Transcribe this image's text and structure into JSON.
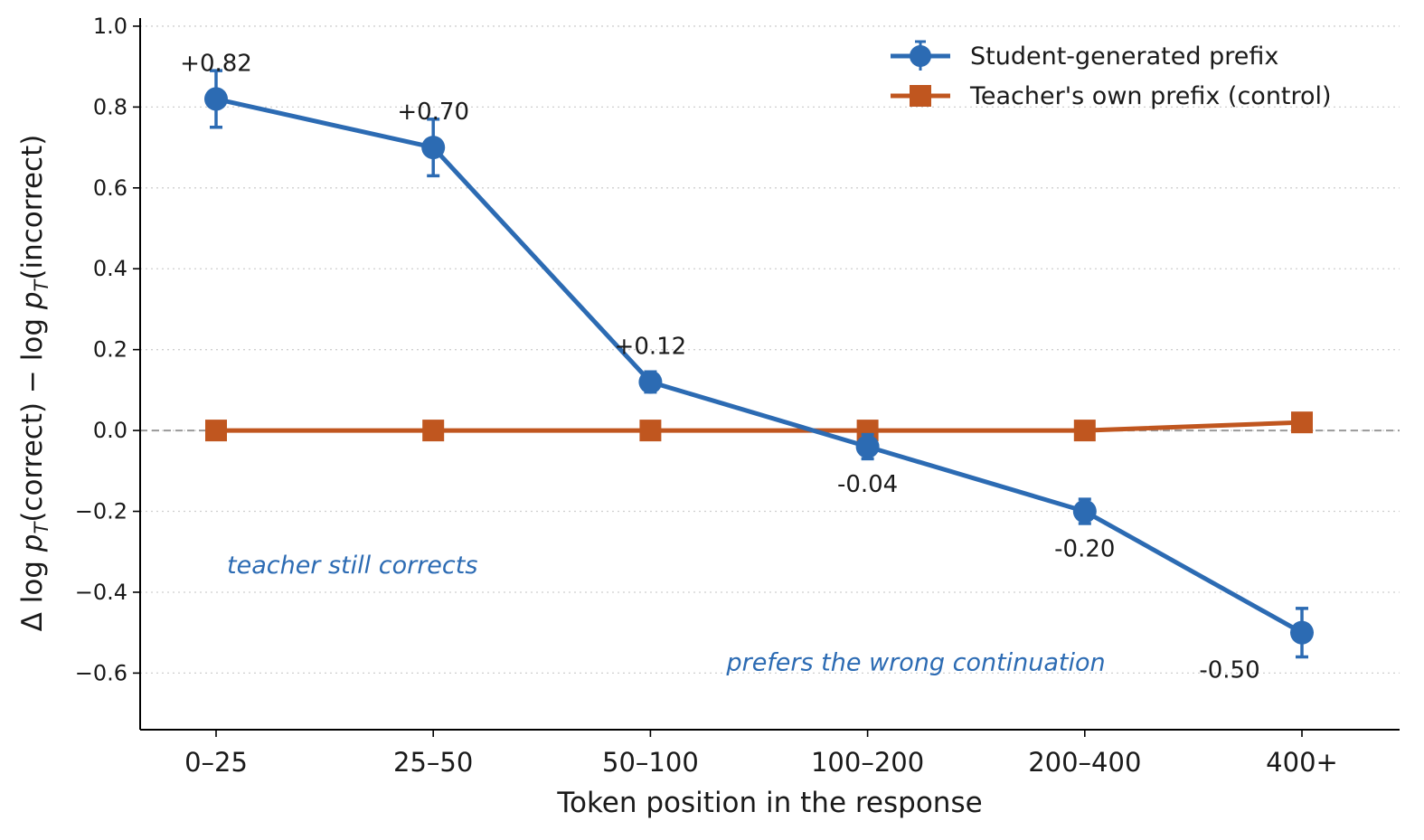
{
  "chart_data": {
    "type": "line",
    "xlabel": "Token position in the response",
    "ylabel_parts": [
      "Δ  log ",
      "p",
      "T",
      "(correct) − log ",
      "p",
      "T",
      "(incorrect)"
    ],
    "categories": [
      "0–25",
      "25–50",
      "50–100",
      "100–200",
      "200–400",
      "400+"
    ],
    "ylim": [
      -0.74,
      1.02
    ],
    "yticks": [
      {
        "value": 1.0,
        "label": "1.0"
      },
      {
        "value": 0.8,
        "label": "0.8"
      },
      {
        "value": 0.6,
        "label": "0.6"
      },
      {
        "value": 0.4,
        "label": "0.4"
      },
      {
        "value": 0.2,
        "label": "0.2"
      },
      {
        "value": 0.0,
        "label": "0.0"
      },
      {
        "value": -0.2,
        "label": "−0.2"
      },
      {
        "value": -0.4,
        "label": "−0.4"
      },
      {
        "value": -0.6,
        "label": "−0.6"
      }
    ],
    "grid": "horizontal-dotted",
    "legend_position": "top-right",
    "series": [
      {
        "name": "Student-generated prefix",
        "color": "#2c6bb3",
        "marker": "circle",
        "values": [
          0.82,
          0.7,
          0.12,
          -0.04,
          -0.2,
          -0.5
        ],
        "error": [
          0.07,
          0.07,
          0.025,
          0.03,
          0.03,
          0.06
        ],
        "data_labels": [
          "+0.82",
          "+0.70",
          "+0.12",
          "-0.04",
          "-0.20",
          "-0.50"
        ],
        "label_side": [
          "above",
          "above",
          "above",
          "below",
          "below",
          "below"
        ]
      },
      {
        "name": "Teacher's own prefix (control)",
        "color": "#c0561f",
        "marker": "square",
        "values": [
          0.0,
          0.0,
          0.0,
          0.0,
          0.0,
          0.02
        ]
      }
    ],
    "reference_line": {
      "value": 0.0,
      "color": "#999999",
      "style": "dashed"
    },
    "annotations": [
      {
        "text": "teacher still corrects",
        "color": "#2c6bb3",
        "at_category": 0,
        "at_y": -0.34
      },
      {
        "text": "prefers the wrong continuation",
        "color": "#2c6bb3",
        "at_category": 2.3,
        "at_y": -0.58
      }
    ]
  }
}
